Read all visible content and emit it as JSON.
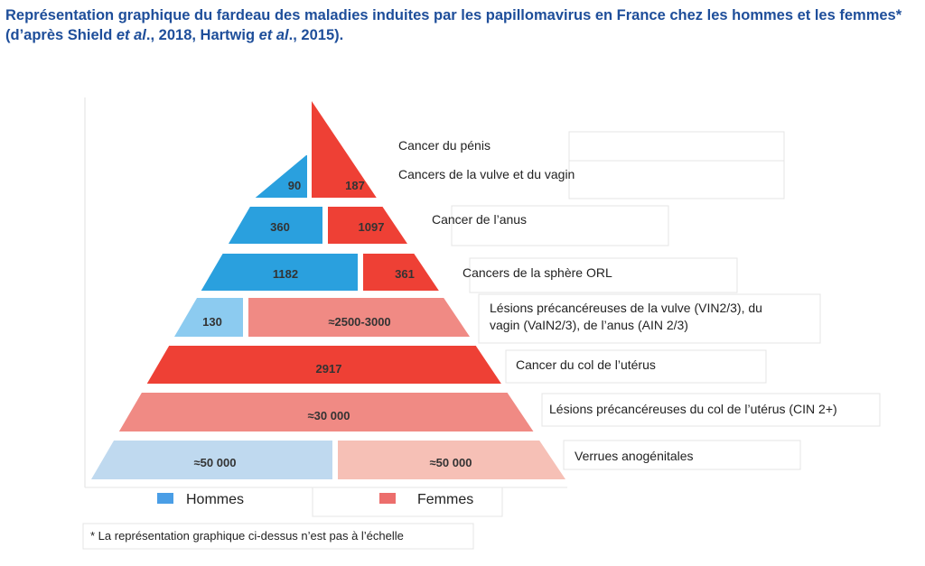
{
  "title": {
    "part1": "Représentation graphique du fardeau des maladies induites par les papillomavirus en France chez les hommes et les femmes* (d’après Shield ",
    "etal1": "et al",
    "part2": "., 2018, Hartwig ",
    "etal2": "et al",
    "part3": "., 2015)."
  },
  "chart_data": {
    "type": "bar",
    "subtype": "population-pyramid",
    "series": [
      {
        "name": "Hommes",
        "color": "#2aa0de"
      },
      {
        "name": "Femmes",
        "color": "#ee4035"
      }
    ],
    "levels": [
      {
        "category": "Cancer du pénis",
        "hommes": null,
        "femmes": null
      },
      {
        "category": "Cancers de la vulve et du vagin",
        "hommes": 90,
        "hommes_label": "90",
        "femmes": 187,
        "femmes_label": "187"
      },
      {
        "category": "Cancer de l’anus",
        "hommes": 360,
        "hommes_label": "360",
        "femmes": 1097,
        "femmes_label": "1097"
      },
      {
        "category": "Cancers de la sphère ORL",
        "hommes": 1182,
        "hommes_label": "1182",
        "femmes": 361,
        "femmes_label": "361"
      },
      {
        "category": "Lésions précancéreuses de la vulve (VIN2/3), du vagin (VaIN2/3), de l’anus (AIN 2/3)",
        "category_lines": [
          "Lésions précancéreuses de la vulve (VIN2/3), du",
          "vagin (VaIN2/3), de l’anus (AIN 2/3)"
        ],
        "hommes": 130,
        "hommes_label": "130",
        "femmes": [
          2500,
          3000
        ],
        "femmes_label": "≈2500-3000"
      },
      {
        "category": "Cancer du col de l’utérus",
        "hommes": null,
        "femmes": 2917,
        "femmes_label": "2917"
      },
      {
        "category": "Lésions précancéreuses du col de l’utérus (CIN 2+)",
        "hommes": null,
        "femmes": 30000,
        "femmes_label": "≈30 000"
      },
      {
        "category": "Verrues anogénitales",
        "hommes": 50000,
        "hommes_label": "≈50 000",
        "femmes": 50000,
        "femmes_label": "≈50 000"
      }
    ],
    "colors": {
      "hommes_dark": "#2aa0de",
      "hommes_light": "#8ccbf0",
      "hommes_pale": "#bfd9ef",
      "femmes_dark": "#ee4035",
      "femmes_light": "#f08a84",
      "femmes_pale": "#f6c0b6"
    },
    "legend": {
      "hommes": "Hommes",
      "femmes": "Femmes",
      "hommes_color": "#4a9ee6",
      "femmes_color": "#ec6e6c"
    },
    "footnote": "* La représentation graphique ci-dessus n’est pas à l’échelle"
  }
}
